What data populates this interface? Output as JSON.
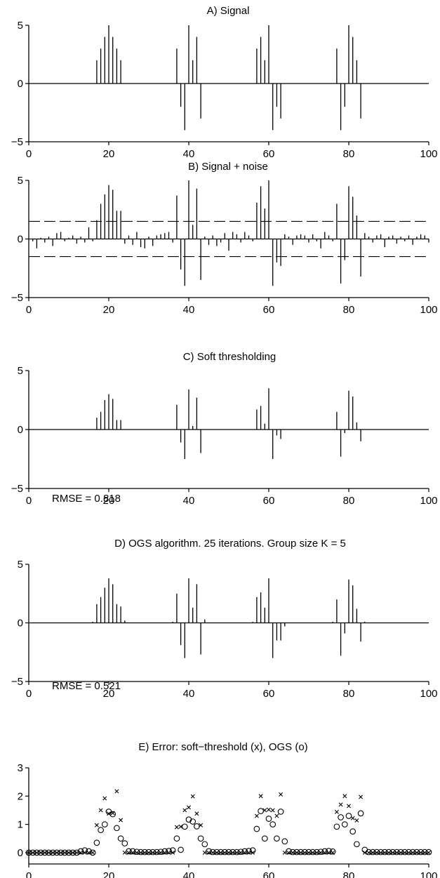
{
  "chart_data": [
    {
      "type": "stem",
      "title": "A) Signal",
      "xlim": [
        0,
        100
      ],
      "ylim": [
        -5,
        5
      ],
      "xticks": [
        0,
        20,
        40,
        60,
        80,
        100
      ],
      "yticks": [
        -5,
        0,
        5
      ],
      "x": [
        17,
        18,
        19,
        20,
        21,
        22,
        23,
        37,
        38,
        39,
        40,
        41,
        42,
        43,
        57,
        58,
        59,
        60,
        61,
        62,
        63,
        77,
        78,
        79,
        80,
        81,
        82,
        83
      ],
      "values": [
        2,
        3,
        4,
        5,
        4,
        3,
        2,
        3,
        -2,
        -4,
        5,
        2,
        4,
        -3,
        3,
        4,
        2,
        5,
        -4,
        -2,
        -3,
        3,
        -4,
        -2,
        5,
        4,
        2,
        -3
      ]
    },
    {
      "type": "stem",
      "title": "B) Signal + noise",
      "xlim": [
        0,
        100
      ],
      "ylim": [
        -5,
        5
      ],
      "xticks": [
        0,
        20,
        40,
        60,
        80,
        100
      ],
      "yticks": [
        -5,
        0,
        5
      ],
      "threshold_lines": [
        1.5,
        -1.5
      ],
      "x": [
        1,
        2,
        3,
        4,
        5,
        6,
        7,
        8,
        9,
        10,
        11,
        12,
        13,
        14,
        15,
        16,
        17,
        18,
        19,
        20,
        21,
        22,
        23,
        24,
        25,
        26,
        27,
        28,
        29,
        30,
        31,
        32,
        33,
        34,
        35,
        36,
        37,
        38,
        39,
        40,
        41,
        42,
        43,
        44,
        45,
        46,
        47,
        48,
        49,
        50,
        51,
        52,
        53,
        54,
        55,
        56,
        57,
        58,
        59,
        60,
        61,
        62,
        63,
        64,
        65,
        66,
        67,
        68,
        69,
        70,
        71,
        72,
        73,
        74,
        75,
        76,
        77,
        78,
        79,
        80,
        81,
        82,
        83,
        84,
        85,
        86,
        87,
        88,
        89,
        90,
        91,
        92,
        93,
        94,
        95,
        96,
        97,
        98,
        99,
        100
      ],
      "values": [
        -0.2,
        -0.8,
        0.1,
        -0.3,
        0.2,
        -0.6,
        0.5,
        0.6,
        -0.2,
        0.1,
        0.3,
        -0.4,
        0.2,
        -0.3,
        1.0,
        -0.2,
        1.6,
        3.0,
        3.8,
        4.6,
        4.2,
        2.4,
        2.4,
        -0.4,
        0.3,
        -0.5,
        0.6,
        -0.7,
        -0.8,
        0.2,
        -0.6,
        0.3,
        0.4,
        0.5,
        0.6,
        -0.3,
        3.7,
        -2.6,
        -4.0,
        5.0,
        1.2,
        4.3,
        -3.5,
        0.2,
        -0.5,
        0.3,
        -0.6,
        -0.3,
        0.5,
        -1.0,
        0.6,
        0.4,
        -0.3,
        0.6,
        0.3,
        -0.2,
        3.1,
        4.5,
        2.6,
        5.0,
        -4.0,
        -2.0,
        -2.3,
        0.4,
        0.2,
        -0.5,
        0.3,
        0.4,
        0.3,
        -0.3,
        0.4,
        -0.2,
        -0.8,
        0.6,
        0.3,
        -0.2,
        3.0,
        -3.8,
        -1.8,
        4.5,
        3.6,
        2.0,
        -3.2,
        0.5,
        0.2,
        -0.3,
        0.3,
        0.4,
        -0.7,
        0.2,
        0.3,
        -0.4,
        0.2,
        -0.2,
        0.3,
        -0.5,
        0.2,
        0.4,
        0.3,
        -0.3
      ]
    },
    {
      "type": "stem",
      "title": "C) Soft thresholding",
      "annotation": "RMSE = 0.818",
      "xlim": [
        0,
        100
      ],
      "ylim": [
        -5,
        5
      ],
      "xticks": [
        0,
        20,
        40,
        60,
        80,
        100
      ],
      "yticks": [
        -5,
        0,
        5
      ],
      "x": [
        17,
        18,
        19,
        20,
        21,
        22,
        23,
        37,
        38,
        39,
        40,
        41,
        42,
        43,
        57,
        58,
        59,
        60,
        61,
        62,
        63,
        77,
        78,
        79,
        80,
        81,
        82,
        83
      ],
      "values": [
        1.0,
        1.5,
        2.5,
        3.0,
        2.6,
        0.8,
        0.8,
        2.1,
        -1.1,
        -2.5,
        3.4,
        0.3,
        2.7,
        -2.0,
        1.7,
        2.0,
        0.5,
        3.5,
        -2.5,
        -0.5,
        -0.8,
        1.5,
        -2.3,
        -0.3,
        3.3,
        2.8,
        0.6,
        -1.0
      ]
    },
    {
      "type": "stem",
      "title": "D) OGS algorithm. 25 iterations. Group size K = 5",
      "annotation": "RMSE = 0.521",
      "xlim": [
        0,
        100
      ],
      "ylim": [
        -5,
        5
      ],
      "xticks": [
        0,
        20,
        40,
        60,
        80,
        100
      ],
      "yticks": [
        -5,
        0,
        5
      ],
      "x": [
        16,
        17,
        18,
        19,
        20,
        21,
        22,
        23,
        24,
        36,
        37,
        38,
        39,
        40,
        41,
        42,
        43,
        44,
        56,
        57,
        58,
        59,
        60,
        61,
        62,
        63,
        64,
        76,
        77,
        78,
        79,
        80,
        81,
        82,
        83,
        84
      ],
      "values": [
        0.1,
        1.6,
        2.2,
        3.0,
        3.8,
        3.3,
        1.6,
        1.4,
        0.2,
        0.1,
        2.5,
        -1.9,
        -3.0,
        3.8,
        1.3,
        3.3,
        -2.7,
        0.3,
        0.1,
        2.2,
        2.6,
        1.3,
        3.8,
        -3.0,
        -1.5,
        -1.5,
        -0.3,
        0.1,
        2.0,
        -2.8,
        -0.9,
        3.7,
        3.2,
        1.2,
        -1.6,
        0.1
      ]
    },
    {
      "type": "scatter",
      "title": "E) Error: soft−threshold (x), OGS (o)",
      "xlim": [
        0,
        100
      ],
      "ylim": [
        -0.4,
        3
      ],
      "xticks": [
        0,
        20,
        40,
        60,
        80,
        100
      ],
      "yticks": [
        0,
        1,
        2,
        3
      ],
      "series": [
        {
          "name": "soft−threshold (x)",
          "marker": "x",
          "x": [
            0,
            1,
            2,
            3,
            4,
            5,
            6,
            7,
            8,
            9,
            10,
            11,
            12,
            13,
            14,
            15,
            16,
            17,
            18,
            19,
            20,
            21,
            22,
            23,
            24,
            25,
            26,
            27,
            28,
            29,
            30,
            31,
            32,
            33,
            34,
            35,
            36,
            37,
            38,
            39,
            40,
            41,
            42,
            43,
            44,
            45,
            46,
            47,
            48,
            49,
            50,
            51,
            52,
            53,
            54,
            55,
            56,
            57,
            58,
            59,
            60,
            61,
            62,
            63,
            64,
            65,
            66,
            67,
            68,
            69,
            70,
            71,
            72,
            73,
            74,
            75,
            76,
            77,
            78,
            79,
            80,
            81,
            82,
            83,
            84,
            85,
            86,
            87,
            88,
            89,
            90,
            91,
            92,
            93,
            94,
            95,
            96,
            97,
            98,
            99,
            100
          ],
          "values": [
            0,
            0,
            0,
            0,
            0,
            0,
            0,
            0,
            0,
            0,
            0,
            0,
            0,
            0,
            0,
            0,
            0,
            0.97,
            1.5,
            1.92,
            1.38,
            1.4,
            2.17,
            1.15,
            0,
            0,
            0,
            0,
            0,
            0,
            0,
            0,
            0,
            0,
            0,
            0,
            0,
            0.9,
            0.92,
            1.5,
            1.6,
            1.99,
            1.38,
            0.97,
            0,
            0,
            0,
            0,
            0,
            0,
            0,
            0,
            0,
            0,
            0,
            0,
            0,
            1.3,
            2.0,
            1.5,
            1.52,
            1.5,
            1.3,
            2.06,
            0,
            0,
            0,
            0,
            0,
            0,
            0,
            0,
            0,
            0,
            0,
            0,
            0,
            1.44,
            1.7,
            2.0,
            1.65,
            1.22,
            1.14,
            1.97,
            0,
            0,
            0,
            0,
            0,
            0,
            0,
            0,
            0,
            0,
            0,
            0,
            0,
            0,
            0,
            0,
            0
          ]
        },
        {
          "name": "OGS (o)",
          "marker": "o",
          "x": [
            0,
            1,
            2,
            3,
            4,
            5,
            6,
            7,
            8,
            9,
            10,
            11,
            12,
            13,
            14,
            15,
            16,
            17,
            18,
            19,
            20,
            21,
            22,
            23,
            24,
            25,
            26,
            27,
            28,
            29,
            30,
            31,
            32,
            33,
            34,
            35,
            36,
            37,
            38,
            39,
            40,
            41,
            42,
            43,
            44,
            45,
            46,
            47,
            48,
            49,
            50,
            51,
            52,
            53,
            54,
            55,
            56,
            57,
            58,
            59,
            60,
            61,
            62,
            63,
            64,
            65,
            66,
            67,
            68,
            69,
            70,
            71,
            72,
            73,
            74,
            75,
            76,
            77,
            78,
            79,
            80,
            81,
            82,
            83,
            84,
            85,
            86,
            87,
            88,
            89,
            90,
            91,
            92,
            93,
            94,
            95,
            96,
            97,
            98,
            99,
            100
          ],
          "values": [
            0,
            0,
            0,
            0,
            0,
            0,
            0,
            0,
            0,
            0,
            0,
            0,
            0,
            0.05,
            0.08,
            0.05,
            0,
            0.35,
            0.8,
            1.0,
            1.45,
            1.36,
            0.87,
            0.5,
            0.33,
            0.05,
            0.05,
            0.03,
            0.02,
            0.02,
            0.02,
            0.02,
            0.02,
            0.03,
            0.05,
            0.06,
            0.08,
            0.5,
            0.1,
            0.92,
            1.17,
            1.1,
            0.93,
            0.5,
            0.3,
            0.05,
            0.02,
            0.02,
            0.02,
            0.02,
            0.02,
            0.02,
            0.02,
            0.03,
            0.05,
            0.06,
            0.08,
            0.84,
            1.47,
            0.5,
            1.2,
            1.0,
            0.5,
            1.45,
            0.4,
            0.05,
            0.02,
            0.02,
            0.02,
            0.02,
            0.02,
            0.02,
            0.02,
            0.03,
            0.05,
            0.06,
            0.04,
            0.92,
            1.25,
            1.0,
            1.3,
            0.75,
            0.3,
            1.39,
            0.1,
            0.02,
            0.02,
            0.02,
            0.02,
            0.02,
            0.02,
            0.02,
            0.02,
            0.02,
            0.02,
            0.02,
            0.02,
            0.02,
            0.02,
            0.02,
            0.02
          ]
        }
      ]
    }
  ]
}
